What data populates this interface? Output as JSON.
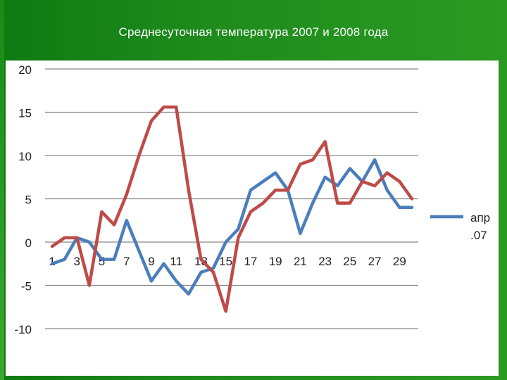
{
  "title": "Среднесуточная температура 2007 и 2008 года",
  "chart_data": {
    "type": "line",
    "x": [
      1,
      2,
      3,
      4,
      5,
      6,
      7,
      8,
      9,
      10,
      11,
      12,
      13,
      14,
      15,
      16,
      17,
      18,
      19,
      20,
      21,
      22,
      23,
      24,
      25,
      26,
      27,
      28,
      29,
      30
    ],
    "x_tick_labels": [
      "1",
      "3",
      "5",
      "7",
      "9",
      "11",
      "13",
      "15",
      "17",
      "19",
      "21",
      "23",
      "25",
      "27",
      "29"
    ],
    "ylim": [
      -10,
      20
    ],
    "y_ticks": [
      20,
      15,
      10,
      5,
      0,
      -5,
      -10
    ],
    "grid": true,
    "legend_position": "right",
    "series": [
      {
        "name": "апр\n.07",
        "color": "#4a7ebb",
        "values": [
          -2.5,
          -2,
          0.5,
          0,
          -2,
          -2,
          2.5,
          -1,
          -4.5,
          -2.5,
          -4.5,
          -6,
          -3.5,
          -3,
          0,
          1.5,
          6,
          7,
          8,
          6,
          1,
          4.5,
          7.5,
          6.5,
          8.5,
          7,
          9.5,
          6,
          4,
          4
        ]
      },
      {
        "color": "#be4b48",
        "values": [
          -0.5,
          0.5,
          0.5,
          -5,
          3.5,
          2,
          5.5,
          10,
          14,
          15.6,
          15.6,
          6,
          -2,
          -3.5,
          -8,
          0.5,
          3.5,
          4.5,
          6,
          6,
          9,
          9.5,
          11.6,
          4.5,
          4.5,
          7,
          6.5,
          8,
          7,
          5
        ]
      }
    ],
    "legend_entries": [
      "апр",
      ".07"
    ]
  }
}
